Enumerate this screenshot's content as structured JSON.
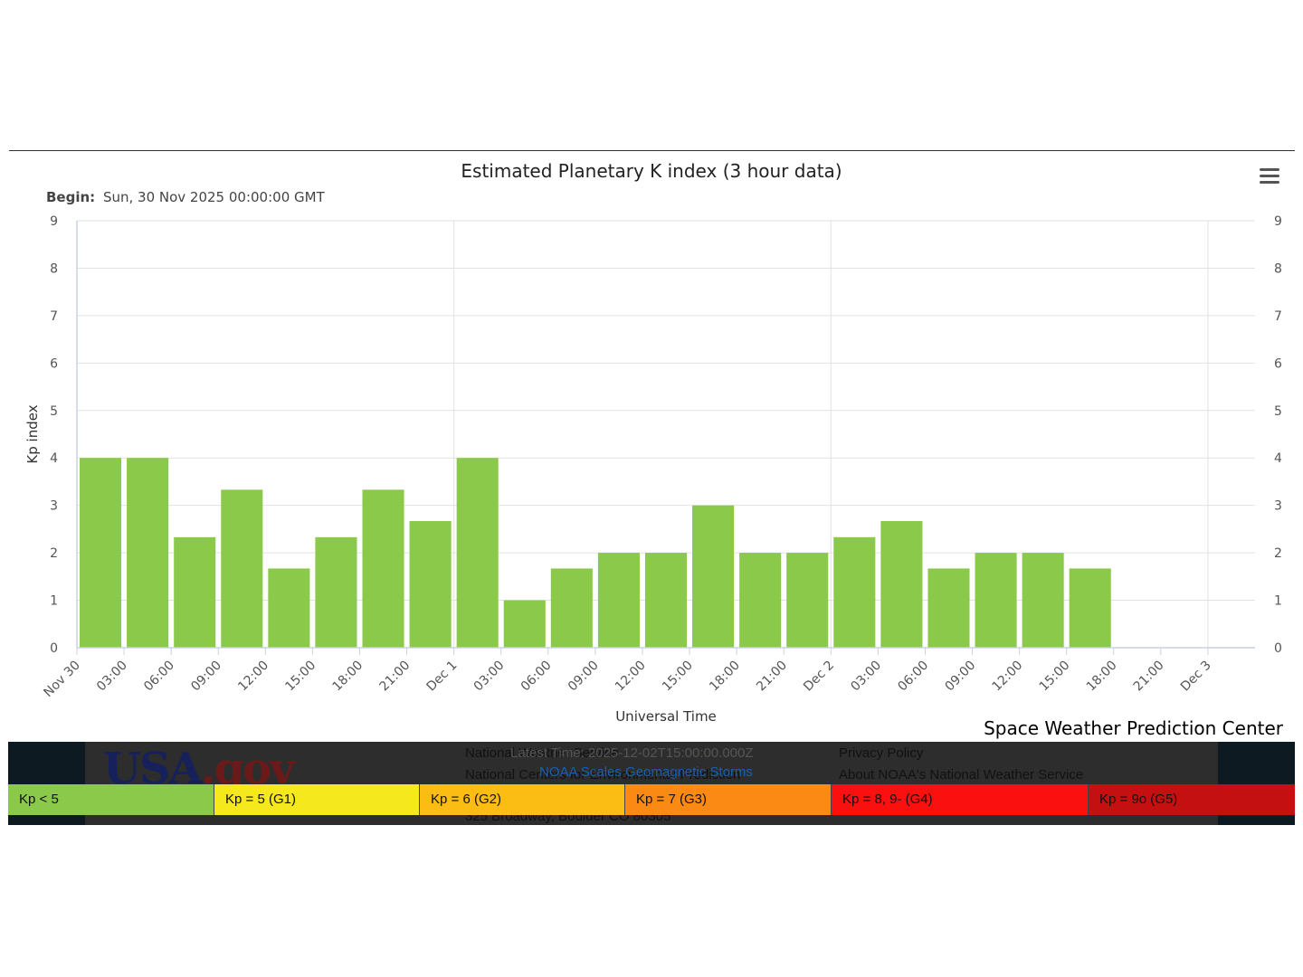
{
  "chart_data": {
    "type": "bar",
    "title": "Estimated Planetary K index (3 hour data)",
    "subtitle_label": "Begin:",
    "subtitle_value": "Sun, 30 Nov 2025 00:00:00 GMT",
    "xlabel": "Universal Time",
    "ylabel": "Kp index",
    "ylim": [
      0,
      9
    ],
    "y_ticks": [
      0,
      1,
      2,
      3,
      4,
      5,
      6,
      7,
      8,
      9
    ],
    "x_ticks": [
      "Nov 30",
      "03:00",
      "06:00",
      "09:00",
      "12:00",
      "15:00",
      "18:00",
      "21:00",
      "Dec 1",
      "03:00",
      "06:00",
      "09:00",
      "12:00",
      "15:00",
      "18:00",
      "21:00",
      "Dec 2",
      "03:00",
      "06:00",
      "09:00",
      "12:00",
      "15:00",
      "18:00",
      "21:00",
      "Dec 3"
    ],
    "bar_color": "#8bc94a",
    "grid": true,
    "values": [
      4,
      4,
      2.33,
      3.33,
      1.67,
      2.33,
      3.33,
      2.67,
      4,
      1,
      1.67,
      2,
      2,
      3,
      2,
      2,
      2.33,
      2.67,
      1.67,
      2,
      2,
      1.67
    ]
  },
  "credit": "Space Weather Prediction Center",
  "footer": {
    "logo_main": "USA",
    "logo_suffix": ".gov",
    "line1": "National Weather Service",
    "line2": "National Centers for Environmental Prediction",
    "line3": "325 Broadway, Boulder CO 80305",
    "overlay_text": "Latest Time: 2025-12-02T15:00:00.000Z",
    "scales_link": "NOAA Scales Geomagnetic Storms",
    "privacy": "Privacy Policy",
    "about": "About NOAA's National Weather Service"
  },
  "scale": [
    {
      "label": "Kp < 5",
      "color": "#8bc94a"
    },
    {
      "label": "Kp = 5 (G1)",
      "color": "#f5e91e"
    },
    {
      "label": "Kp = 6 (G2)",
      "color": "#fbbd14"
    },
    {
      "label": "Kp = 7 (G3)",
      "color": "#fb8a14"
    },
    {
      "label": "Kp = 8, 9- (G4)",
      "color": "#fb1010"
    },
    {
      "label": "Kp = 9o (G5)",
      "color": "#c41010"
    }
  ]
}
